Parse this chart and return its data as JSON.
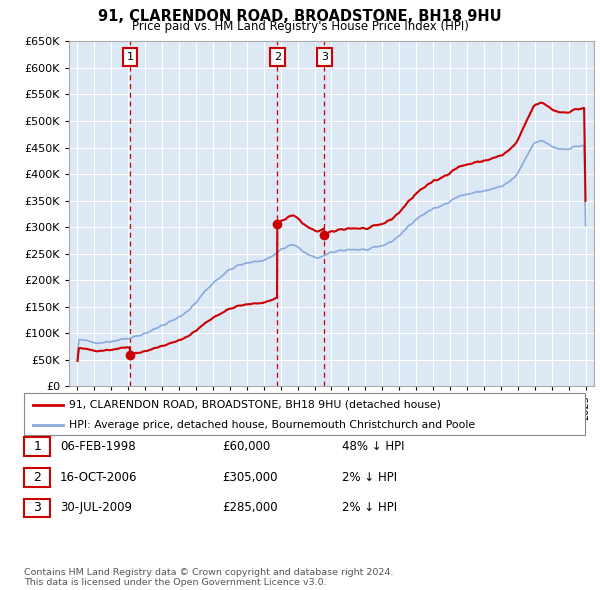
{
  "title": "91, CLARENDON ROAD, BROADSTONE, BH18 9HU",
  "subtitle": "Price paid vs. HM Land Registry's House Price Index (HPI)",
  "legend_label_red": "91, CLARENDON ROAD, BROADSTONE, BH18 9HU (detached house)",
  "legend_label_blue": "HPI: Average price, detached house, Bournemouth Christchurch and Poole",
  "footnote": "Contains HM Land Registry data © Crown copyright and database right 2024.\nThis data is licensed under the Open Government Licence v3.0.",
  "transactions": [
    {
      "num": 1,
      "date": "06-FEB-1998",
      "price": 60000,
      "hpi_pct": "48% ↓ HPI",
      "year": 1998.1
    },
    {
      "num": 2,
      "date": "16-OCT-2006",
      "price": 305000,
      "hpi_pct": "2% ↓ HPI",
      "year": 2006.8
    },
    {
      "num": 3,
      "date": "30-JUL-2009",
      "price": 285000,
      "hpi_pct": "2% ↓ HPI",
      "year": 2009.58
    }
  ],
  "ylim": [
    0,
    650000
  ],
  "yticks": [
    0,
    50000,
    100000,
    150000,
    200000,
    250000,
    300000,
    350000,
    400000,
    450000,
    500000,
    550000,
    600000,
    650000
  ],
  "bg_color": "#dde8f5",
  "grid_color": "#ffffff",
  "red_color": "#cc0000",
  "blue_color": "#88aadd"
}
